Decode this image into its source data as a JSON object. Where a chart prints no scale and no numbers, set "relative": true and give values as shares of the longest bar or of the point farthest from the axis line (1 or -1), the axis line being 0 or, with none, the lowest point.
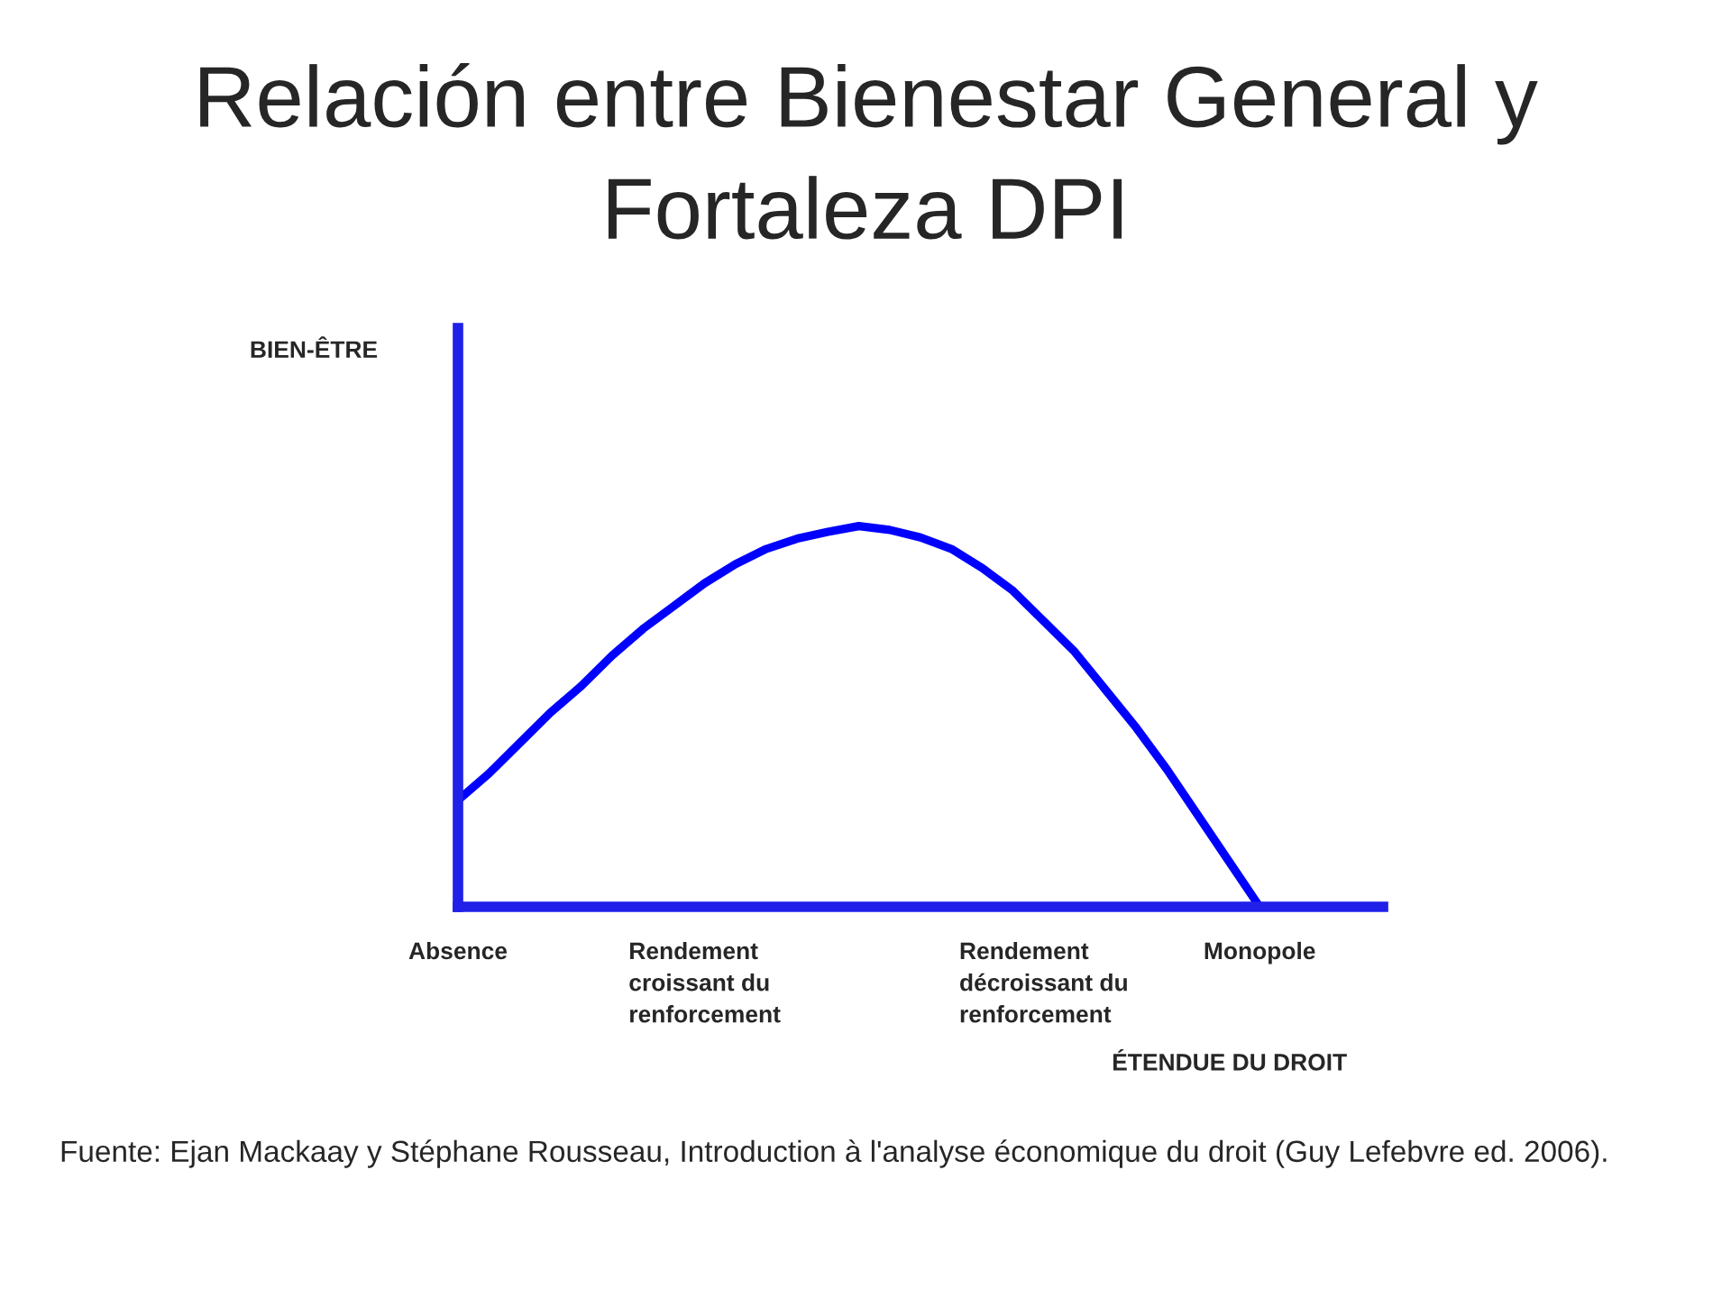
{
  "chart_data": {
    "type": "line",
    "title": "Relación entre Bienestar General y\nFortaleza DPI",
    "xlabel": "ÉTENDUE DU DROIT",
    "annotations": [
      "BIEN-ÊTRE",
      "Fuente: Ejan Mackaay y Stéphane Rousseau, Introduction à l'analyse économique du droit (Guy Lefebvre ed. 2006)."
    ],
    "relative": true,
    "tick_labels": "x",
    "categories": [
      "Absence",
      null,
      null,
      null,
      null,
      null,
      null,
      null,
      "Rendement\ncroissant du\nrenforcement",
      null,
      null,
      null,
      null,
      null,
      null,
      null,
      null,
      null,
      null,
      "Rendement\ndécroissant du\nrenforcement",
      null,
      null,
      null,
      null,
      null,
      null,
      "Monopole",
      null,
      null,
      null,
      null
    ],
    "series": [
      {
        "color": "#0000ff",
        "values": [
          0.28,
          0.35,
          0.43,
          0.51,
          0.58,
          0.66,
          0.73,
          0.79,
          0.85,
          0.9,
          0.94,
          0.967,
          0.985,
          1,
          0.99,
          0.97,
          0.94,
          0.89,
          0.83,
          0.75,
          0.67,
          0.57,
          0.47,
          0.36,
          0.24,
          0.12,
          0,
          null,
          null,
          null,
          null
        ]
      }
    ]
  }
}
